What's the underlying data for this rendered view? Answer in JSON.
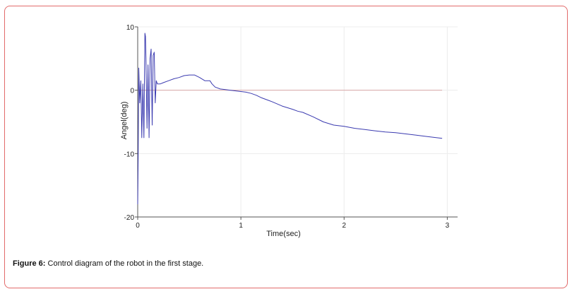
{
  "caption": {
    "label": "Figure 6:",
    "text": "Control diagram of the robot in the first stage."
  },
  "colors": {
    "frame": "#e26a6a",
    "series": "#3b3bb0",
    "zero_line": "#d9a9a9",
    "grid": "#ececec",
    "axis": "#555555"
  },
  "chart_data": {
    "type": "line",
    "title": "",
    "xlabel": "Time(sec)",
    "ylabel": "Angel(deg)",
    "xlim": [
      0,
      3.1
    ],
    "ylim": [
      -20,
      10
    ],
    "xticks": [
      0,
      1,
      2,
      3
    ],
    "yticks": [
      10,
      0,
      -10,
      -20
    ],
    "xtick_labels": [
      "0",
      "1",
      "2",
      "3"
    ],
    "ytick_labels": [
      "10",
      "0",
      "-10",
      "-20"
    ],
    "grid": true,
    "reference_line": {
      "y": 0,
      "x_range": [
        0,
        2.95
      ]
    },
    "series": [
      {
        "name": "",
        "x": [
          0.0,
          0.005,
          0.01,
          0.02,
          0.03,
          0.04,
          0.05,
          0.06,
          0.07,
          0.075,
          0.08,
          0.09,
          0.1,
          0.11,
          0.12,
          0.13,
          0.14,
          0.15,
          0.16,
          0.17,
          0.18,
          0.19,
          0.2,
          0.21,
          0.22,
          0.25,
          0.3,
          0.35,
          0.4,
          0.45,
          0.5,
          0.55,
          0.6,
          0.65,
          0.7,
          0.72,
          0.75,
          0.8,
          0.85,
          0.9,
          0.95,
          1.0,
          1.05,
          1.1,
          1.15,
          1.2,
          1.3,
          1.4,
          1.5,
          1.55,
          1.6,
          1.7,
          1.8,
          1.9,
          2.0,
          2.1,
          2.2,
          2.3,
          2.4,
          2.5,
          2.6,
          2.7,
          2.8,
          2.9,
          2.95
        ],
        "values": [
          -18.0,
          -10.0,
          3.5,
          -2.0,
          1.5,
          -7.5,
          1.0,
          -7.5,
          9.0,
          8.5,
          5.0,
          -6.0,
          4.0,
          -7.5,
          5.0,
          6.5,
          -5.5,
          5.5,
          6.0,
          -2.0,
          1.5,
          1.0,
          1.0,
          1.0,
          1.0,
          1.2,
          1.5,
          1.8,
          2.0,
          2.3,
          2.4,
          2.4,
          2.0,
          1.5,
          1.5,
          1.0,
          0.5,
          0.2,
          0.1,
          0.0,
          -0.1,
          -0.2,
          -0.3,
          -0.5,
          -0.8,
          -1.2,
          -1.8,
          -2.5,
          -3.0,
          -3.3,
          -3.5,
          -4.2,
          -5.0,
          -5.5,
          -5.7,
          -6.0,
          -6.2,
          -6.4,
          -6.6,
          -6.7,
          -6.9,
          -7.1,
          -7.3,
          -7.5,
          -7.6
        ]
      }
    ]
  }
}
